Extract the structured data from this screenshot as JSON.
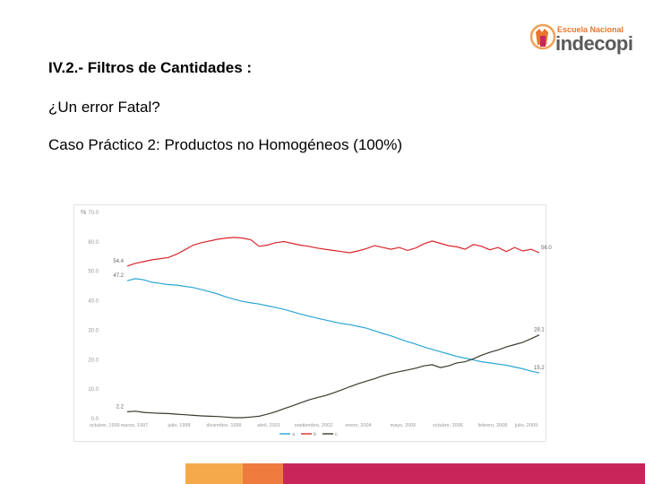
{
  "header": {
    "logo_escuela": "Escuela Nacional",
    "logo_brand": "indecopi"
  },
  "slide": {
    "title": "IV.2.- Filtros de Cantidades :",
    "line1": "¿Un error Fatal?",
    "line2": "Caso Práctico 2: Productos no Homogéneos (100%)"
  },
  "colors": {
    "series_a": "#2aa6d6",
    "series_b": "#d9262b",
    "series_c": "#3a3a2e",
    "footer": [
      "#f5a94a",
      "#ee7b3e",
      "#c8265a"
    ]
  },
  "chart_data": {
    "type": "line",
    "ylabel": "%",
    "ylim": [
      0,
      70
    ],
    "yticks": [
      "70.0",
      "60.0",
      "50.0",
      "40.0",
      "30.0",
      "20.0",
      "10.0",
      "0.0"
    ],
    "xticks": [
      "octubre, 1995",
      "marzo, 1997",
      "julio, 1998",
      "diciembre, 1999",
      "abril, 2001",
      "septiembre, 2002",
      "enero, 2004",
      "mayo, 2005",
      "octubre, 2006",
      "febrero, 2008",
      "julio, 2009"
    ],
    "annotations": [
      "54.4",
      "47.2",
      "2.2",
      "56.0",
      "28.1",
      "15.2"
    ],
    "legend": [
      "a",
      "b",
      "c"
    ],
    "legend_position": "bottom",
    "grid": false,
    "series": [
      {
        "name": "a",
        "x": [
          0,
          2,
          4,
          6,
          8,
          10,
          12,
          14,
          16,
          18,
          20,
          22,
          24,
          26,
          28,
          30,
          32,
          34,
          36,
          38,
          40,
          42,
          44,
          46,
          48,
          50,
          52,
          54,
          56,
          58,
          60,
          62,
          64,
          66,
          68,
          70,
          72,
          74,
          76,
          78,
          80,
          82,
          84,
          86,
          88,
          90,
          92,
          94,
          96,
          98,
          100
        ],
        "values": [
          46.5,
          47.2,
          46.8,
          46.0,
          45.6,
          45.2,
          45.0,
          44.6,
          44.2,
          43.5,
          42.8,
          42.0,
          41.0,
          40.2,
          39.5,
          39.0,
          38.6,
          38.0,
          37.4,
          36.8,
          36.0,
          35.2,
          34.5,
          33.8,
          33.2,
          32.6,
          32.0,
          31.6,
          31.0,
          30.4,
          29.5,
          28.6,
          27.8,
          26.8,
          25.8,
          25.0,
          24.0,
          23.2,
          22.4,
          21.6,
          20.8,
          20.2,
          19.6,
          19.0,
          18.6,
          18.2,
          17.8,
          17.2,
          16.6,
          15.8,
          15.2
        ]
      },
      {
        "name": "b",
        "x": [
          0,
          2,
          4,
          6,
          8,
          10,
          12,
          14,
          16,
          18,
          20,
          22,
          24,
          26,
          28,
          30,
          32,
          34,
          36,
          38,
          40,
          42,
          44,
          46,
          48,
          50,
          52,
          54,
          56,
          58,
          60,
          62,
          64,
          66,
          68,
          70,
          72,
          74,
          76,
          78,
          80,
          82,
          84,
          86,
          88,
          90,
          92,
          94,
          96,
          98,
          100
        ],
        "values": [
          51.5,
          52.4,
          53.0,
          53.6,
          54.0,
          54.4,
          55.5,
          57.0,
          58.6,
          59.4,
          60.0,
          60.6,
          61.0,
          61.2,
          61.0,
          60.4,
          58.2,
          58.6,
          59.4,
          59.8,
          59.2,
          58.6,
          58.2,
          57.6,
          57.2,
          56.8,
          56.4,
          56.0,
          56.6,
          57.4,
          58.4,
          57.8,
          57.2,
          57.8,
          56.8,
          57.6,
          59.0,
          60.0,
          59.2,
          58.4,
          58.0,
          57.2,
          58.8,
          58.2,
          57.0,
          57.8,
          56.4,
          57.8,
          56.6,
          57.2,
          56.0
        ]
      },
      {
        "name": "c",
        "x": [
          0,
          2,
          4,
          6,
          8,
          10,
          12,
          14,
          16,
          18,
          20,
          22,
          24,
          26,
          28,
          30,
          32,
          34,
          36,
          38,
          40,
          42,
          44,
          46,
          48,
          50,
          52,
          54,
          56,
          58,
          60,
          62,
          64,
          66,
          68,
          70,
          72,
          74,
          76,
          78,
          80,
          82,
          84,
          86,
          88,
          90,
          92,
          94,
          96,
          98,
          100
        ],
        "values": [
          2.0,
          2.2,
          1.8,
          1.6,
          1.5,
          1.4,
          1.2,
          1.0,
          0.8,
          0.6,
          0.5,
          0.4,
          0.2,
          0.0,
          0.0,
          0.2,
          0.5,
          1.2,
          2.0,
          3.0,
          4.0,
          5.0,
          6.0,
          6.8,
          7.5,
          8.4,
          9.4,
          10.5,
          11.5,
          12.4,
          13.2,
          14.2,
          15.0,
          15.6,
          16.2,
          16.8,
          17.6,
          18.0,
          17.0,
          17.6,
          18.6,
          19.0,
          20.0,
          21.2,
          22.2,
          23.0,
          24.0,
          24.8,
          25.6,
          26.8,
          28.1
        ]
      }
    ]
  }
}
